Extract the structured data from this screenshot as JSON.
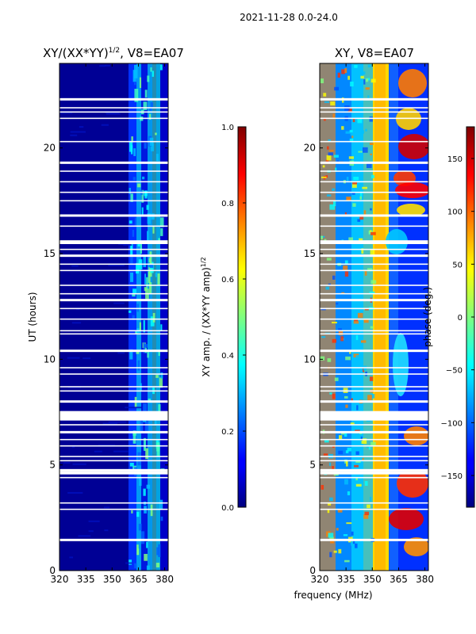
{
  "suptitle": "2021-11-28 0.0-24.0",
  "shared": {
    "xlabel": "frequency (MHz)"
  },
  "chart_data": [
    {
      "type": "heatmap",
      "title": "XY/(XX*YY)",
      "title_exp": "1/2",
      "title_suffix": ", V8=EA07",
      "ylabel": "UT (hours)",
      "xlim": [
        320,
        382
      ],
      "ylim": [
        0,
        24
      ],
      "xticks": [
        320,
        335,
        350,
        365,
        380
      ],
      "yticks": [
        0,
        5,
        10,
        15,
        20
      ],
      "colormap": "jet",
      "colorbar": {
        "label": "XY amp. / (XX*YY amp)",
        "label_exp": "1/2",
        "range": [
          0.0,
          1.0
        ],
        "ticks": [
          "0.0",
          "0.2",
          "0.4",
          "0.6",
          "0.8",
          "1.0"
        ],
        "tick_values": [
          0.0,
          0.2,
          0.4,
          0.6,
          0.8,
          1.0
        ]
      },
      "description": "normalized cross amplitude vs frequency and UT"
    },
    {
      "type": "heatmap",
      "title": "XY, V8=EA07",
      "ylabel": "",
      "xlim": [
        320,
        382
      ],
      "ylim": [
        0,
        24
      ],
      "xticks": [
        320,
        335,
        350,
        365,
        380
      ],
      "yticks": [
        0,
        5,
        10,
        15,
        20
      ],
      "colormap": "jet",
      "colorbar": {
        "label": "phase (deg.)",
        "range": [
          -180,
          180
        ],
        "ticks": [
          "−150",
          "−100",
          "−50",
          "0",
          "50",
          "100",
          "150"
        ],
        "tick_values": [
          -150,
          -100,
          -50,
          0,
          50,
          100,
          150
        ]
      },
      "description": "cross-hand phase vs frequency and UT"
    }
  ],
  "flagged_ut_hours": [
    1.45,
    2.9,
    3.2,
    4.4,
    4.6,
    4.75,
    5.2,
    5.4,
    5.9,
    6.2,
    6.55,
    6.9,
    7.2,
    7.35,
    7.5,
    8.0,
    8.5,
    8.7,
    9.3,
    9.6,
    10.4,
    11.2,
    11.35,
    11.9,
    12.4,
    12.8,
    13.1,
    13.5,
    14.2,
    14.5,
    14.9,
    15.2,
    15.5,
    15.6,
    16.3,
    16.8,
    17.5,
    17.9,
    18.4,
    18.9,
    19.3,
    20.3,
    21.4,
    21.7,
    21.9,
    22.3
  ]
}
